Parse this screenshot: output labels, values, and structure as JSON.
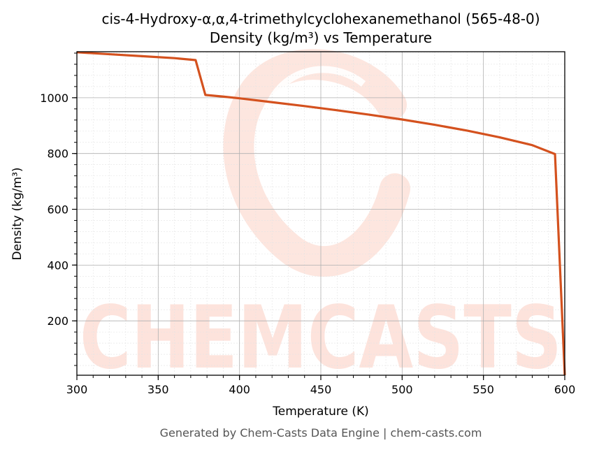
{
  "chart_data": {
    "type": "line",
    "title": "cis-4-Hydroxy-α,α,4-trimethylcyclohexanemethanol (565-48-0)",
    "subtitle": "Density (kg/m³) vs Temperature",
    "xlabel": "Temperature (K)",
    "ylabel": "Density (kg/m³)",
    "xlim": [
      300,
      600
    ],
    "ylim": [
      5,
      1165
    ],
    "xticks": [
      300,
      350,
      400,
      450,
      500,
      550,
      600
    ],
    "yticks": [
      200,
      400,
      600,
      800,
      1000
    ],
    "grid": true,
    "line_color": "#d4511e",
    "series": [
      {
        "x": [
          300,
          320,
          340,
          360,
          373,
          379,
          390,
          400,
          420,
          440,
          460,
          480,
          500,
          520,
          540,
          560,
          580,
          594,
          600
        ],
        "y": [
          1163,
          1156,
          1149,
          1142,
          1135,
          1010,
          1004,
          998,
          984,
          970,
          955,
          939,
          922,
          903,
          882,
          858,
          830,
          798,
          5
        ]
      }
    ]
  },
  "watermark": "CHEMCASTS",
  "footer": "Generated by Chem-Casts Data Engine | chem-casts.com"
}
